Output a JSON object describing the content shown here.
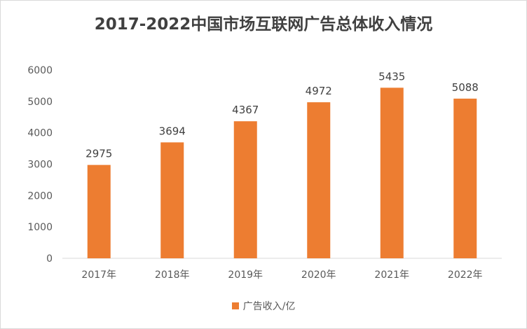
{
  "chart_data": {
    "type": "bar",
    "title": "2017-2022中国市场互联网广告总体收入情况",
    "categories": [
      "2017年",
      "2018年",
      "2019年",
      "2020年",
      "2021年",
      "2022年"
    ],
    "series": [
      {
        "name": "广告收入/亿",
        "values": [
          2975,
          3694,
          4367,
          4972,
          5435,
          5088
        ]
      }
    ],
    "ylim": [
      0,
      6000
    ],
    "yticks": [
      0,
      1000,
      2000,
      3000,
      4000,
      5000,
      6000
    ],
    "data_labels": true,
    "grid": false,
    "legend_position": "bottom",
    "bar_color": "#ED7D31"
  }
}
